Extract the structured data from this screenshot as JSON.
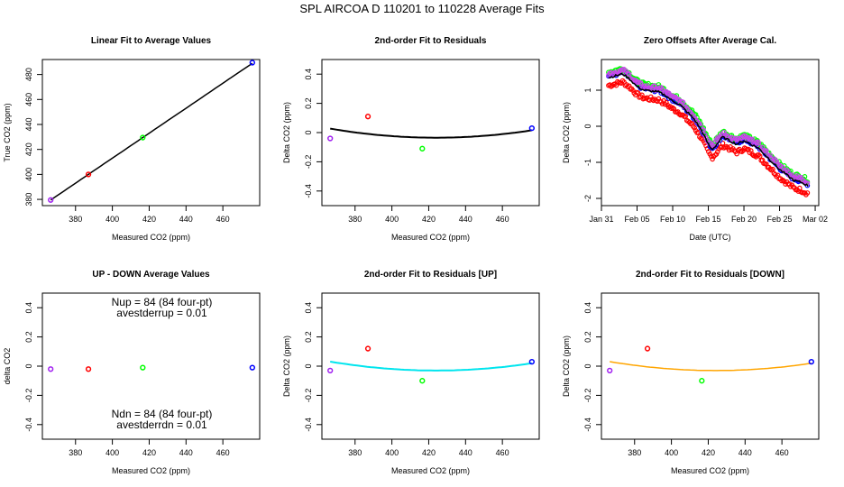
{
  "figure": {
    "title": "SPL   AIRCOA D   110201 to 110228   Average Fits"
  },
  "colors": {
    "purple": "#a020f0",
    "red": "#ff0000",
    "green": "#00ff00",
    "blue": "#0000ff",
    "black": "#000000",
    "cyan": "#00e5ee",
    "orange": "#ffa500",
    "violet": "#cc44ee"
  },
  "chart_data": [
    {
      "id": "p1",
      "type": "scatter",
      "title": "Linear Fit to Average Values",
      "xlabel": "Measured CO2 (ppm)",
      "ylabel": "True CO2 (ppm)",
      "xlim": [
        362,
        480
      ],
      "ylim": [
        375,
        492
      ],
      "xticks": [
        380,
        400,
        420,
        440,
        460
      ],
      "yticks": [
        380,
        400,
        420,
        440,
        460,
        480
      ],
      "points": [
        {
          "x": 366.5,
          "y": 379.5,
          "color": "purple"
        },
        {
          "x": 387.0,
          "y": 400.0,
          "color": "red"
        },
        {
          "x": 416.5,
          "y": 429.5,
          "color": "green"
        },
        {
          "x": 476.0,
          "y": 489.5,
          "color": "blue"
        }
      ],
      "fit": {
        "kind": "linear",
        "a": 13.0,
        "b": 1.0,
        "x0": 366.5,
        "x1": 476.0,
        "color": "black"
      }
    },
    {
      "id": "p2",
      "type": "scatter",
      "title": "2nd-order Fit to Residuals",
      "xlabel": "Measured CO2 (ppm)",
      "ylabel": "Delta CO2 (ppm)",
      "xlim": [
        362,
        480
      ],
      "ylim": [
        -0.5,
        0.5
      ],
      "xticks": [
        380,
        400,
        420,
        440,
        460
      ],
      "yticks": [
        -0.4,
        -0.2,
        0.0,
        0.2,
        0.4
      ],
      "points": [
        {
          "x": 366.5,
          "y": -0.04,
          "color": "purple"
        },
        {
          "x": 387.0,
          "y": 0.11,
          "color": "red"
        },
        {
          "x": 416.5,
          "y": -0.11,
          "color": "green"
        },
        {
          "x": 476.0,
          "y": 0.03,
          "color": "blue"
        }
      ],
      "fit": {
        "kind": "quad",
        "xv": 424.0,
        "yv": -0.035,
        "k": 1.88e-05,
        "x0": 366.5,
        "x1": 476.0,
        "color": "black",
        "width": 2
      }
    },
    {
      "id": "p3",
      "type": "scatter",
      "title": "Zero Offsets After Average Cal.",
      "xlabel": "Date (UTC)",
      "ylabel": "Delta CO2 (ppm)",
      "xlim": [
        0,
        30.5
      ],
      "ylim": [
        -2.2,
        1.85
      ],
      "xtick_values": [
        0,
        5,
        10,
        15,
        20,
        25,
        30
      ],
      "xtick_labels": [
        "Jan 31",
        "Feb 05",
        "Feb 10",
        "Feb 15",
        "Feb 20",
        "Feb 25",
        "Mar 02"
      ],
      "yticks": [
        -2.0,
        -1.0,
        0.0,
        1.0
      ],
      "series": [
        {
          "color": "red",
          "offset": -0.22
        },
        {
          "color": "blue",
          "offset": 0.05
        },
        {
          "color": "green",
          "offset": 0.15
        },
        {
          "color": "violet",
          "offset": 0.1
        },
        {
          "color": "black",
          "offset": 0.0
        }
      ],
      "trend": [
        {
          "x": 1.0,
          "y": 1.35
        },
        {
          "x": 2.0,
          "y": 1.4
        },
        {
          "x": 3.0,
          "y": 1.45
        },
        {
          "x": 4.0,
          "y": 1.3
        },
        {
          "x": 5.0,
          "y": 1.1
        },
        {
          "x": 6.0,
          "y": 1.0
        },
        {
          "x": 8.0,
          "y": 0.95
        },
        {
          "x": 9.0,
          "y": 0.85
        },
        {
          "x": 10.0,
          "y": 0.7
        },
        {
          "x": 11.0,
          "y": 0.6
        },
        {
          "x": 12.0,
          "y": 0.4
        },
        {
          "x": 13.0,
          "y": 0.2
        },
        {
          "x": 14.0,
          "y": -0.1
        },
        {
          "x": 15.0,
          "y": -0.5
        },
        {
          "x": 15.5,
          "y": -0.65
        },
        {
          "x": 16.0,
          "y": -0.55
        },
        {
          "x": 17.0,
          "y": -0.3
        },
        {
          "x": 18.0,
          "y": -0.4
        },
        {
          "x": 19.0,
          "y": -0.5
        },
        {
          "x": 20.0,
          "y": -0.4
        },
        {
          "x": 21.0,
          "y": -0.5
        },
        {
          "x": 22.0,
          "y": -0.6
        },
        {
          "x": 23.0,
          "y": -0.8
        },
        {
          "x": 24.0,
          "y": -1.0
        },
        {
          "x": 25.0,
          "y": -1.2
        },
        {
          "x": 26.0,
          "y": -1.35
        },
        {
          "x": 27.0,
          "y": -1.5
        },
        {
          "x": 28.0,
          "y": -1.55
        },
        {
          "x": 29.0,
          "y": -1.65
        }
      ]
    },
    {
      "id": "p4",
      "type": "scatter",
      "title": "UP - DOWN Average Values",
      "xlabel": "Measured CO2 (ppm)",
      "ylabel": "delta CO2",
      "xlim": [
        362,
        480
      ],
      "ylim": [
        -0.5,
        0.5
      ],
      "xticks": [
        380,
        400,
        420,
        440,
        460
      ],
      "yticks": [
        -0.4,
        -0.2,
        0.0,
        0.2,
        0.4
      ],
      "points": [
        {
          "x": 366.5,
          "y": -0.02,
          "color": "purple"
        },
        {
          "x": 387.0,
          "y": -0.02,
          "color": "red"
        },
        {
          "x": 416.5,
          "y": -0.01,
          "color": "green"
        },
        {
          "x": 476.0,
          "y": -0.01,
          "color": "blue"
        }
      ],
      "annotations_top": [
        "Nup = 84 (84 four-pt)",
        "avestderrup =  0.01"
      ],
      "annotations_bottom": [
        "Ndn = 84 (84 four-pt)",
        "avestderrdn =  0.01"
      ]
    },
    {
      "id": "p5",
      "type": "scatter",
      "title": "2nd-order Fit to Residuals [UP]",
      "xlabel": "Measured CO2 (ppm)",
      "ylabel": "Delta CO2 (ppm)",
      "xlim": [
        362,
        480
      ],
      "ylim": [
        -0.5,
        0.5
      ],
      "xticks": [
        380,
        400,
        420,
        440,
        460
      ],
      "yticks": [
        -0.4,
        -0.2,
        0.0,
        0.2,
        0.4
      ],
      "points": [
        {
          "x": 366.5,
          "y": -0.03,
          "color": "purple"
        },
        {
          "x": 387.0,
          "y": 0.12,
          "color": "red"
        },
        {
          "x": 416.5,
          "y": -0.1,
          "color": "green"
        },
        {
          "x": 476.0,
          "y": 0.03,
          "color": "blue"
        }
      ],
      "fit": {
        "kind": "quad",
        "xv": 424.0,
        "yv": -0.03,
        "k": 1.85e-05,
        "x0": 366.5,
        "x1": 476.0,
        "color": "cyan",
        "width": 2
      }
    },
    {
      "id": "p6",
      "type": "scatter",
      "title": "2nd-order Fit to Residuals [DOWN]",
      "xlabel": "Measured CO2 (ppm)",
      "ylabel": "Delta CO2 (ppm)",
      "xlim": [
        362,
        480
      ],
      "ylim": [
        -0.5,
        0.5
      ],
      "xticks": [
        380,
        400,
        420,
        440,
        460
      ],
      "yticks": [
        -0.4,
        -0.2,
        0.0,
        0.2,
        0.4
      ],
      "points": [
        {
          "x": 366.5,
          "y": -0.03,
          "color": "purple"
        },
        {
          "x": 387.0,
          "y": 0.12,
          "color": "red"
        },
        {
          "x": 416.5,
          "y": -0.1,
          "color": "green"
        },
        {
          "x": 476.0,
          "y": 0.03,
          "color": "blue"
        }
      ],
      "fit": {
        "kind": "quad",
        "xv": 424.0,
        "yv": -0.03,
        "k": 1.85e-05,
        "x0": 366.5,
        "x1": 476.0,
        "color": "orange",
        "width": 1.5
      }
    }
  ]
}
